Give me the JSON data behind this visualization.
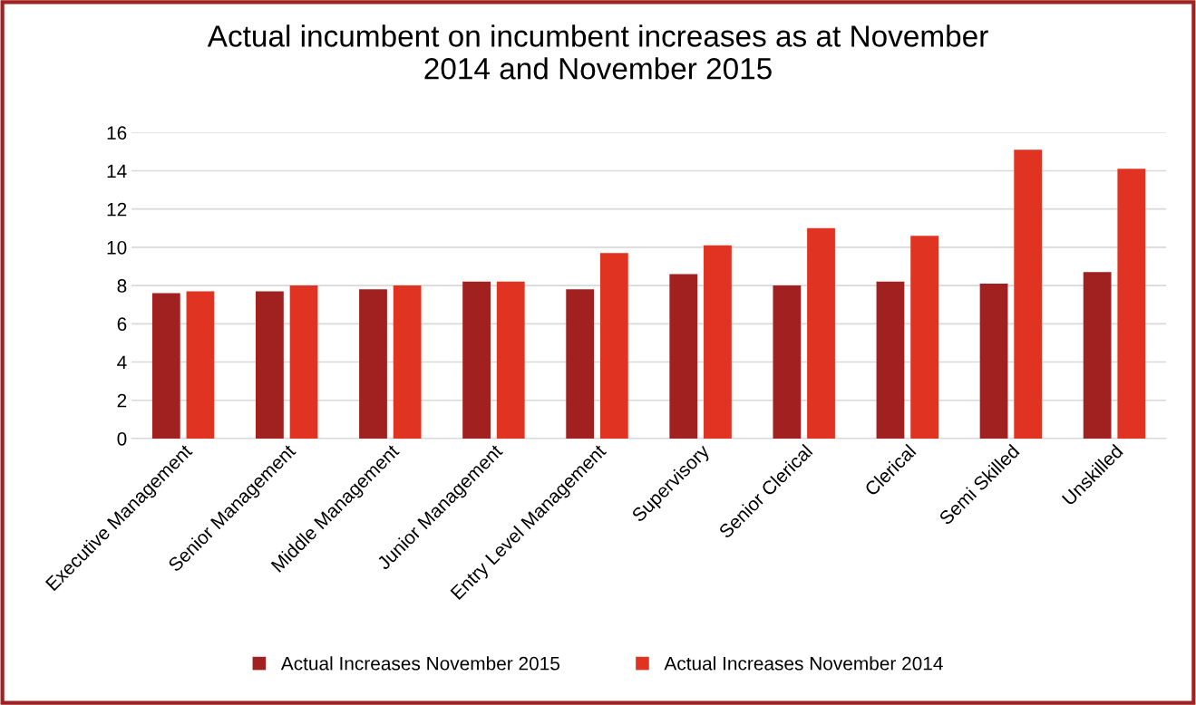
{
  "chart_data": {
    "type": "bar",
    "title": "Actual incumbent on incumbent increases as at November\n2014 and November 2015",
    "categories": [
      "Executive Management",
      "Senior Management",
      "Middle Management",
      "Junior Management",
      "Entry Level Management",
      "Supervisory",
      "Senior Clerical",
      "Clerical",
      "Semi Skilled",
      "Unskilled"
    ],
    "series": [
      {
        "name": "Actual Increases November 2015",
        "color": "#a12020",
        "values": [
          7.6,
          7.7,
          7.8,
          8.2,
          7.8,
          8.6,
          8.0,
          8.2,
          8.1,
          8.7
        ]
      },
      {
        "name": "Actual Increases November 2014",
        "color": "#e03322",
        "values": [
          7.7,
          8.0,
          8.0,
          8.2,
          9.7,
          10.1,
          11.0,
          10.6,
          15.1,
          14.1
        ]
      }
    ],
    "ylim": [
      0,
      16
    ],
    "yticks": [
      0,
      2,
      4,
      6,
      8,
      10,
      12,
      14,
      16
    ],
    "grid": "y",
    "legend": "bottom"
  }
}
